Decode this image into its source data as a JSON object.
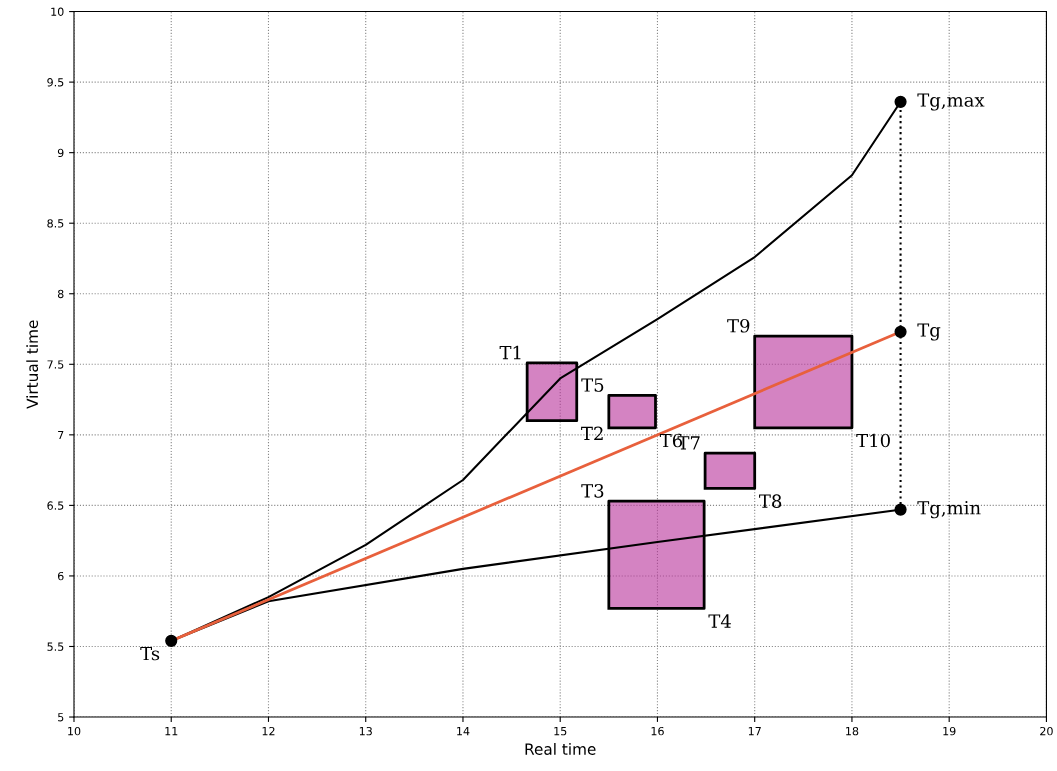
{
  "chart_data": {
    "type": "line",
    "xlabel": "Real time",
    "ylabel": "Virtual time",
    "xlim": [
      10,
      20
    ],
    "ylim": [
      5,
      10
    ],
    "xticks": [
      10,
      11,
      12,
      13,
      14,
      15,
      16,
      17,
      18,
      19,
      20
    ],
    "yticks": [
      5,
      5.5,
      6,
      6.5,
      7,
      7.5,
      8,
      8.5,
      9,
      9.5,
      10
    ],
    "grid": true,
    "line_style": "solid",
    "series": [
      {
        "type": "area",
        "color": "#b8309a",
        "x": [
          14.66,
          15.17,
          15.17,
          14.66,
          14.66
        ],
        "values": [
          7.1,
          7.1,
          7.51,
          7.51,
          7.1
        ]
      },
      {
        "type": "area",
        "color": "#b8309a",
        "x": [
          15.5,
          15.98,
          15.98,
          15.5,
          15.5
        ],
        "values": [
          7.05,
          7.05,
          7.28,
          7.28,
          7.05
        ]
      },
      {
        "type": "area",
        "color": "#b8309a",
        "x": [
          16.49,
          17.0,
          17.0,
          16.49,
          16.49
        ],
        "values": [
          6.62,
          6.62,
          6.87,
          6.87,
          6.62
        ]
      },
      {
        "type": "area",
        "color": "#b8309a",
        "x": [
          17.0,
          18.0,
          18.0,
          17.0,
          17.0
        ],
        "values": [
          7.05,
          7.05,
          7.7,
          7.7,
          7.05
        ]
      },
      {
        "type": "area",
        "color": "#b8309a",
        "x": [
          15.5,
          16.48,
          16.48,
          15.5,
          15.5
        ],
        "values": [
          5.77,
          5.77,
          6.53,
          6.53,
          5.77
        ]
      },
      {
        "color": "#000000",
        "x": [
          11,
          12,
          13,
          14,
          15,
          16,
          17,
          18,
          18.5
        ],
        "values": [
          5.54,
          5.85,
          6.22,
          6.68,
          7.4,
          7.82,
          8.26,
          8.84,
          9.36
        ]
      },
      {
        "color": "#000000",
        "x": [
          11,
          12,
          14,
          16,
          18.5
        ],
        "values": [
          5.54,
          5.82,
          6.05,
          6.24,
          6.47
        ]
      },
      {
        "color": "#e8603c",
        "x": [
          11,
          18.5
        ],
        "values": [
          5.54,
          7.73
        ]
      },
      {
        "color": "#000000",
        "line_style": "dotted",
        "x": [
          18.5,
          18.5
        ],
        "values": [
          6.47,
          9.36
        ]
      },
      {
        "type": "scatter",
        "color": "#000000",
        "marker": "circle",
        "x": [
          11,
          18.5,
          18.5,
          18.5
        ],
        "values": [
          5.54,
          9.36,
          7.73,
          6.47
        ]
      }
    ],
    "annotations": [
      {
        "text": "T1",
        "x": 14.66,
        "y": 7.51
      },
      {
        "text": "T2",
        "x": 15.17,
        "y": 7.1
      },
      {
        "text": "T3",
        "x": 15.5,
        "y": 6.53
      },
      {
        "text": "T4",
        "x": 16.48,
        "y": 5.77
      },
      {
        "text": "T5",
        "x": 15.5,
        "y": 7.28
      },
      {
        "text": "T6",
        "x": 15.98,
        "y": 7.05
      },
      {
        "text": "T7",
        "x": 16.49,
        "y": 6.87
      },
      {
        "text": "T8",
        "x": 17.0,
        "y": 6.62
      },
      {
        "text": "T9",
        "x": 17.0,
        "y": 7.7
      },
      {
        "text": "T10",
        "x": 18.0,
        "y": 7.05
      },
      {
        "text": "Ts",
        "x": 11,
        "y": 5.54
      },
      {
        "text": "Tg,max",
        "x": 18.5,
        "y": 9.36
      },
      {
        "text": "Tg",
        "x": 18.5,
        "y": 7.73
      },
      {
        "text": "Tg,min",
        "x": 18.5,
        "y": 6.47
      }
    ]
  }
}
